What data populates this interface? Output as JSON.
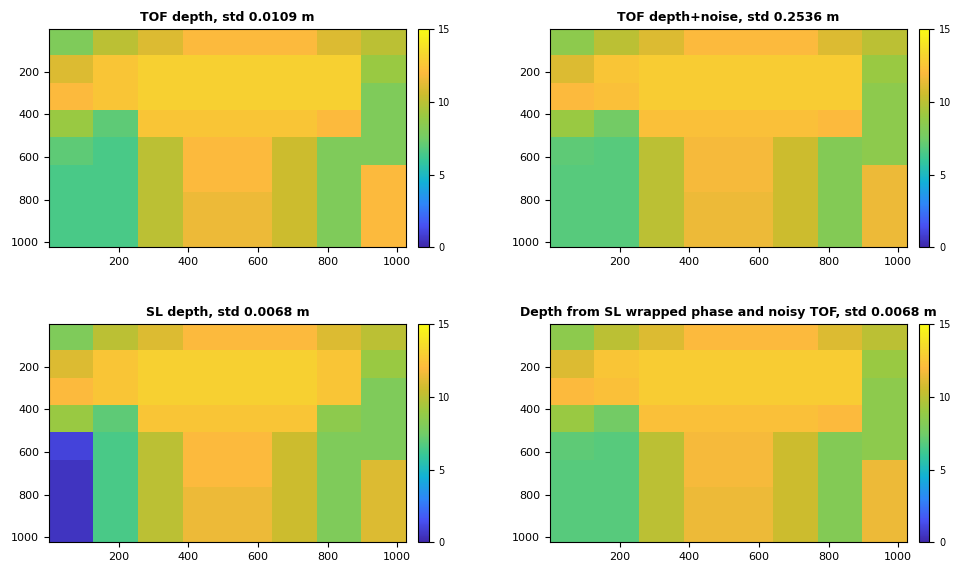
{
  "chart_data": [
    {
      "type": "heatmap",
      "title": "TOF depth, std 0.0109 m",
      "xlim": [
        0,
        1024
      ],
      "ylim": [
        1024,
        0
      ],
      "xticks": [
        200,
        400,
        600,
        800,
        1000
      ],
      "yticks": [
        200,
        400,
        600,
        800,
        1000
      ],
      "cells": [
        [
          8,
          10,
          11,
          12,
          12,
          12,
          11,
          10
        ],
        [
          11,
          12.5,
          13,
          13,
          13,
          13,
          13,
          9
        ],
        [
          12,
          12.5,
          13,
          13,
          13,
          13,
          13,
          8
        ],
        [
          9,
          7,
          12.5,
          12.5,
          12.5,
          12.5,
          12,
          8
        ],
        [
          7,
          6.5,
          10,
          12,
          12,
          10.5,
          8,
          8
        ],
        [
          6.5,
          6.5,
          10,
          12,
          12,
          10.5,
          8,
          12
        ],
        [
          6.5,
          6.5,
          10,
          11.5,
          11.5,
          10.5,
          8,
          12
        ],
        [
          6.5,
          6.5,
          10,
          11.5,
          11.5,
          10.5,
          8,
          12
        ]
      ],
      "colorbar": {
        "range": [
          0,
          15
        ],
        "ticks": [
          0,
          5,
          10,
          15
        ]
      }
    },
    {
      "type": "heatmap",
      "title": "TOF depth+noise, std 0.2536 m",
      "xlim": [
        0,
        1024
      ],
      "ylim": [
        1024,
        0
      ],
      "xticks": [
        200,
        400,
        600,
        800,
        1000
      ],
      "yticks": [
        200,
        400,
        600,
        800,
        1000
      ],
      "cells": [
        [
          8.5,
          10,
          11,
          12,
          12,
          12,
          11,
          10
        ],
        [
          11,
          12.5,
          12.8,
          12.8,
          12.8,
          12.8,
          12.8,
          9
        ],
        [
          12,
          12.3,
          12.8,
          12.8,
          12.8,
          12.8,
          12.8,
          8.5
        ],
        [
          9,
          7.5,
          12.3,
          12.3,
          12.3,
          12.3,
          12,
          8.5
        ],
        [
          7,
          6.8,
          10,
          11.8,
          11.8,
          10.5,
          8.2,
          8.5
        ],
        [
          6.8,
          6.8,
          10,
          11.8,
          11.8,
          10.5,
          8.2,
          11.5
        ],
        [
          6.8,
          6.8,
          10,
          11.5,
          11.5,
          10.5,
          8.2,
          11.5
        ],
        [
          6.8,
          6.8,
          10,
          11.5,
          11.5,
          10.5,
          8.2,
          11.5
        ]
      ],
      "colorbar": {
        "range": [
          0,
          15
        ],
        "ticks": [
          0,
          5,
          10,
          15
        ]
      }
    },
    {
      "type": "heatmap",
      "title": "SL depth, std 0.0068 m",
      "xlim": [
        0,
        1024
      ],
      "ylim": [
        1024,
        0
      ],
      "xticks": [
        200,
        400,
        600,
        800,
        1000
      ],
      "yticks": [
        200,
        400,
        600,
        800,
        1000
      ],
      "cells": [
        [
          8,
          10,
          11,
          12,
          12,
          12,
          11,
          10
        ],
        [
          11,
          12.5,
          13,
          13,
          13,
          13,
          12.5,
          9
        ],
        [
          12,
          12.5,
          13,
          13,
          13,
          13,
          12.5,
          8
        ],
        [
          9,
          7,
          12.5,
          12.5,
          12.5,
          12.5,
          8.5,
          8
        ],
        [
          1,
          6.5,
          10,
          12,
          12,
          10.5,
          8,
          8
        ],
        [
          0.5,
          6.5,
          10,
          12,
          12,
          10.5,
          8,
          11
        ],
        [
          0.5,
          6.5,
          10,
          11.5,
          11.5,
          10.5,
          8,
          11
        ],
        [
          0.5,
          6.5,
          10,
          11.5,
          11.5,
          10.5,
          8,
          11
        ]
      ],
      "colorbar": {
        "range": [
          0,
          15
        ],
        "ticks": [
          0,
          5,
          10,
          15
        ]
      }
    },
    {
      "type": "heatmap",
      "title": "Depth from SL wrapped phase and noisy TOF, std 0.0068 m",
      "xlim": [
        0,
        1024
      ],
      "ylim": [
        1024,
        0
      ],
      "xticks": [
        200,
        400,
        600,
        800,
        1000
      ],
      "yticks": [
        200,
        400,
        600,
        800,
        1000
      ],
      "cells": [
        [
          8.5,
          10,
          11,
          12,
          12,
          12,
          11,
          10
        ],
        [
          11,
          12.5,
          12.8,
          12.8,
          12.8,
          12.8,
          12.8,
          9
        ],
        [
          12,
          12.3,
          12.8,
          12.8,
          12.8,
          12.8,
          12.8,
          8.5
        ],
        [
          9,
          7.5,
          12.3,
          12.3,
          12.3,
          12.3,
          12,
          8.5
        ],
        [
          7,
          6.8,
          10,
          11.8,
          11.8,
          10.5,
          8.2,
          8.5
        ],
        [
          6.8,
          6.8,
          10,
          11.8,
          11.8,
          10.5,
          8.2,
          11.5
        ],
        [
          6.8,
          6.8,
          10,
          11.5,
          11.5,
          10.5,
          8.2,
          11.5
        ],
        [
          6.8,
          6.8,
          10,
          11.5,
          11.5,
          10.5,
          8.2,
          11.5
        ]
      ],
      "colorbar": {
        "range": [
          0,
          15
        ],
        "ticks": [
          0,
          5,
          10,
          15
        ]
      }
    }
  ]
}
